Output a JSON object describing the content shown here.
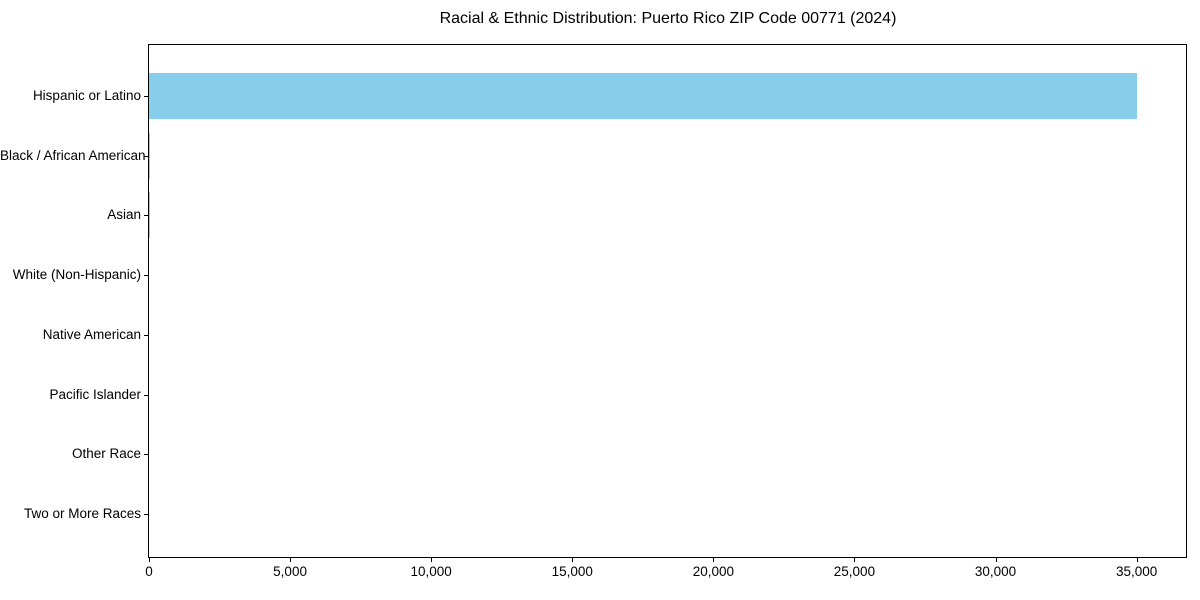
{
  "title": "Racial & Ethnic Distribution: Puerto Rico ZIP Code 00771 (2024)",
  "colors": {
    "bar": "#87CEEB",
    "axis": "#000000",
    "text": "#000000",
    "background": "#FFFFFF"
  },
  "chart_data": {
    "type": "bar",
    "orientation": "horizontal",
    "title": "Racial & Ethnic Distribution: Puerto Rico ZIP Code 00771 (2024)",
    "categories": [
      "Hispanic or Latino",
      "Black / African American",
      "Asian",
      "White (Non-Hispanic)",
      "Native American",
      "Pacific Islander",
      "Other Race",
      "Two or More Races"
    ],
    "values": [
      35000,
      40,
      40,
      0,
      0,
      0,
      0,
      0
    ],
    "xlabel": "",
    "ylabel": "",
    "xlim": [
      0,
      36750
    ],
    "x_ticks": [
      0,
      5000,
      10000,
      15000,
      20000,
      25000,
      30000,
      35000
    ],
    "x_tick_labels": [
      "0",
      "5,000",
      "10,000",
      "15,000",
      "20,000",
      "25,000",
      "30,000",
      "35,000"
    ],
    "grid": false,
    "legend": null,
    "bar_color": "#87CEEB"
  }
}
